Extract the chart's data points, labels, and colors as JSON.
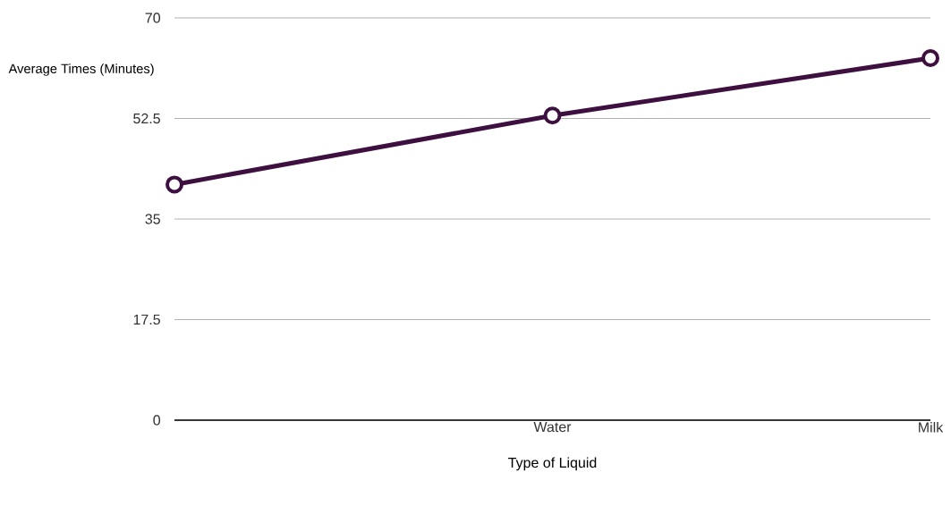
{
  "chart_data": {
    "type": "line",
    "xlabel": "Type of Liquid",
    "ylabel": "Average Times (Minutes)",
    "categories": [
      null,
      "Water",
      "Milk"
    ],
    "series": [
      {
        "color": "#3d1040",
        "values": [
          41,
          53,
          63
        ]
      }
    ],
    "ylim": [
      0,
      70
    ],
    "yticks": [
      0,
      17.5,
      35,
      52.5,
      70
    ],
    "grid": "y",
    "marker": "circle",
    "line_style": "solid"
  }
}
